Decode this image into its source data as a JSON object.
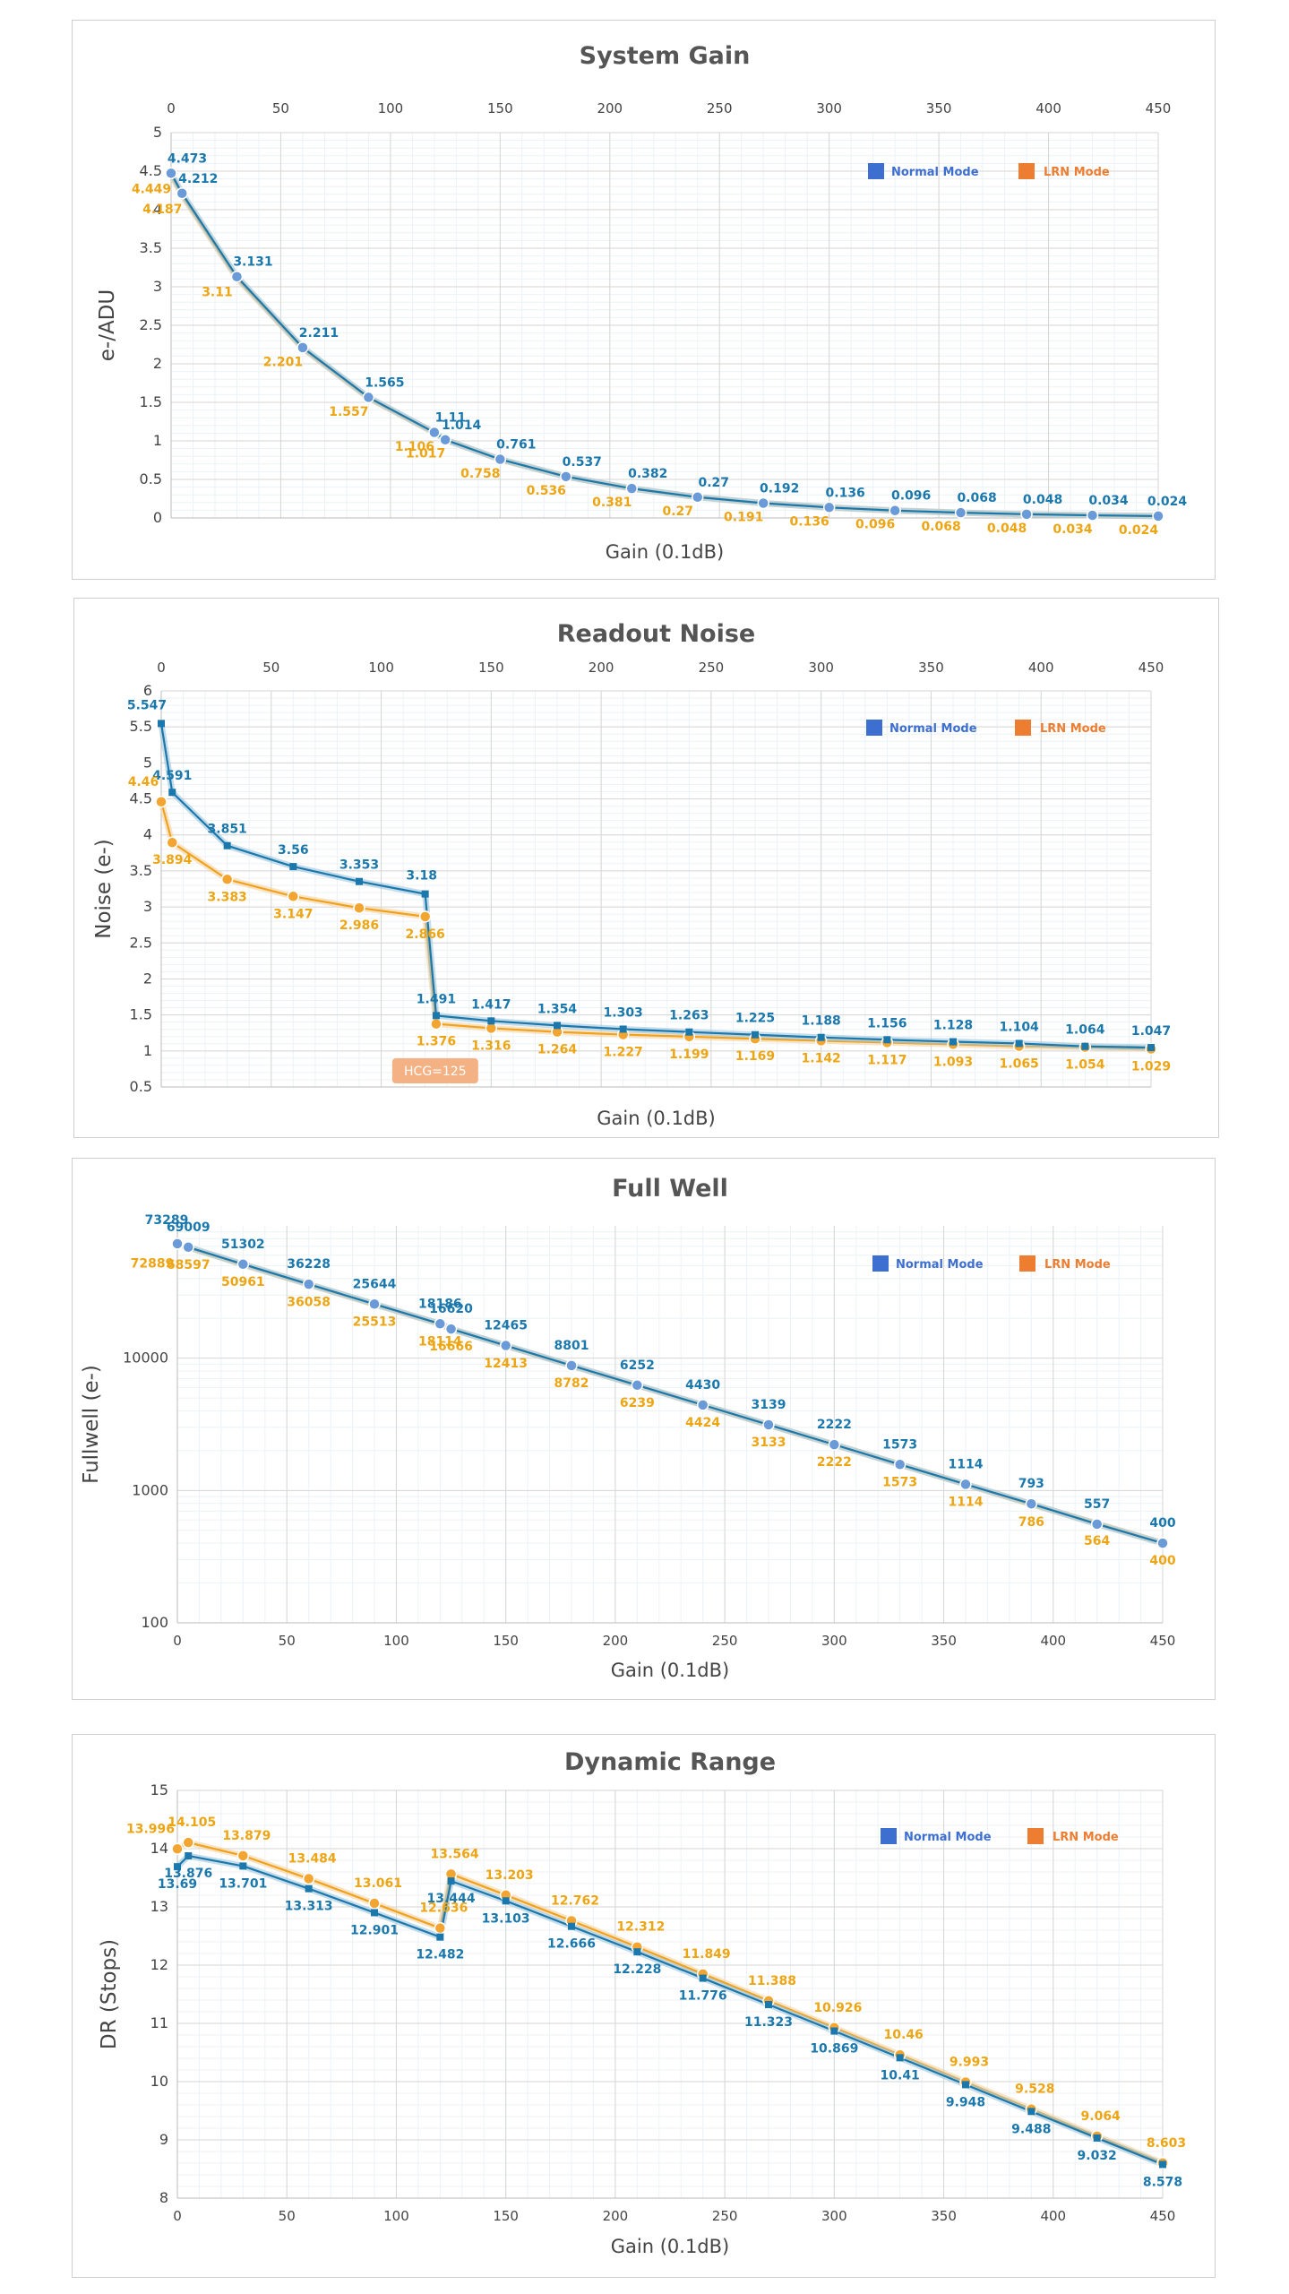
{
  "colors": {
    "normal": "#1b78ac",
    "lrn": "#f0a21c",
    "normal_legend": "#3d6fd0",
    "lrn_legend": "#ed7d31",
    "marker": "#6a9bd8",
    "text_axis": "#555555",
    "hcg_bg": "#f4b183"
  },
  "legend": {
    "normal": "Normal Mode",
    "lrn": "LRN Mode"
  },
  "chart_data": [
    {
      "type": "line",
      "title": "System Gain",
      "xlabel": "Gain (0.1dB)",
      "ylabel": "e-/ADU",
      "x_axis_position": "top",
      "xlim": [
        0,
        450
      ],
      "ylim": [
        0,
        5
      ],
      "x_ticks": [
        "0",
        "50",
        "100",
        "150",
        "200",
        "250",
        "300",
        "350",
        "400",
        "450"
      ],
      "y_ticks": [
        "0",
        "0.5",
        "1",
        "1.5",
        "2",
        "2.5",
        "3",
        "3.5",
        "4",
        "4.5",
        "5"
      ],
      "series": [
        {
          "name": "Normal Mode",
          "x": [
            0,
            5,
            30,
            60,
            90,
            120,
            125,
            150,
            180,
            210,
            240,
            270,
            300,
            330,
            360,
            390,
            420,
            450
          ],
          "values": [
            4.473,
            4.212,
            3.131,
            2.211,
            1.565,
            1.11,
            1.014,
            0.761,
            0.537,
            0.382,
            0.27,
            0.192,
            0.136,
            0.096,
            0.068,
            0.048,
            0.034,
            0.024
          ],
          "labels": [
            "4.473",
            "4.212",
            "3.131",
            "2.211",
            "1.565",
            "1.11",
            "1.014",
            "0.761",
            "0.537",
            "0.382",
            "0.27",
            "0.192",
            "0.136",
            "0.096",
            "0.068",
            "0.048",
            "0.034",
            "0.024"
          ]
        },
        {
          "name": "LRN Mode",
          "x": [
            0,
            5,
            30,
            60,
            90,
            120,
            125,
            150,
            180,
            210,
            240,
            270,
            300,
            330,
            360,
            390,
            420,
            450
          ],
          "values": [
            4.449,
            4.187,
            3.11,
            2.201,
            1.557,
            1.106,
            1.017,
            0.758,
            0.536,
            0.381,
            0.27,
            0.191,
            0.136,
            0.096,
            0.068,
            0.048,
            0.034,
            0.024
          ],
          "labels": [
            "4.449",
            "4.187",
            "3.11",
            "2.201",
            "1.557",
            "1.106",
            "1.017",
            "0.758",
            "0.536",
            "0.381",
            "0.27",
            "0.191",
            "0.136",
            "0.096",
            "0.068",
            "0.048",
            "0.034",
            "0.024"
          ]
        }
      ]
    },
    {
      "type": "line",
      "title": "Readout Noise",
      "xlabel": "Gain (0.1dB)",
      "ylabel": "Noise (e-)",
      "x_axis_position": "top",
      "xlim": [
        0,
        450
      ],
      "ylim": [
        0.5,
        6
      ],
      "x_ticks": [
        "0",
        "50",
        "100",
        "150",
        "200",
        "250",
        "300",
        "350",
        "400",
        "450"
      ],
      "y_ticks": [
        "0.5",
        "1",
        "1.5",
        "2",
        "2.5",
        "3",
        "3.5",
        "4",
        "4.5",
        "5",
        "5.5",
        "6"
      ],
      "annotation": "HCG=125",
      "series": [
        {
          "name": "Normal Mode",
          "x": [
            0,
            5,
            30,
            60,
            90,
            120,
            125,
            150,
            180,
            210,
            240,
            270,
            300,
            330,
            360,
            390,
            420,
            450
          ],
          "values": [
            5.547,
            4.591,
            3.851,
            3.56,
            3.353,
            3.18,
            1.491,
            1.417,
            1.354,
            1.303,
            1.263,
            1.225,
            1.188,
            1.156,
            1.128,
            1.104,
            1.064,
            1.047
          ],
          "labels": [
            "5.547",
            "4.591",
            "3.851",
            "3.56",
            "3.353",
            "3.18",
            "1.491",
            "1.417",
            "1.354",
            "1.303",
            "1.263",
            "1.225",
            "1.188",
            "1.156",
            "1.128",
            "1.104",
            "1.064",
            "1.047"
          ]
        },
        {
          "name": "LRN Mode",
          "x": [
            0,
            5,
            30,
            60,
            90,
            120,
            125,
            150,
            180,
            210,
            240,
            270,
            300,
            330,
            360,
            390,
            420,
            450
          ],
          "values": [
            4.46,
            3.894,
            3.383,
            3.147,
            2.986,
            2.866,
            1.376,
            1.316,
            1.264,
            1.227,
            1.199,
            1.169,
            1.142,
            1.117,
            1.093,
            1.065,
            1.054,
            1.029
          ],
          "labels": [
            "4.46",
            "3.894",
            "3.383",
            "3.147",
            "2.986",
            "2.866",
            "1.376",
            "1.316",
            "1.264",
            "1.227",
            "1.199",
            "1.169",
            "1.142",
            "1.117",
            "1.093",
            "1.065",
            "1.054",
            "1.029"
          ]
        }
      ]
    },
    {
      "type": "line",
      "title": "Full Well",
      "xlabel": "Gain (0.1dB)",
      "ylabel": "Fullwell (e-)",
      "x_axis_position": "bottom",
      "y_scale": "log",
      "xlim": [
        0,
        450
      ],
      "ylim": [
        100,
        100000
      ],
      "x_ticks": [
        "0",
        "50",
        "100",
        "150",
        "200",
        "250",
        "300",
        "350",
        "400",
        "450"
      ],
      "y_ticks": [
        "100",
        "1000",
        "10000"
      ],
      "series": [
        {
          "name": "Normal Mode",
          "x": [
            0,
            5,
            30,
            60,
            90,
            120,
            125,
            150,
            180,
            210,
            240,
            270,
            300,
            330,
            360,
            390,
            420,
            450
          ],
          "values": [
            73289,
            69009,
            51302,
            36228,
            25644,
            18186,
            16620,
            12465,
            8801,
            6252,
            4430,
            3139,
            2222,
            1573,
            1114,
            793,
            557,
            400
          ],
          "labels": [
            "73289",
            "69009",
            "51302",
            "36228",
            "25644",
            "18186",
            "16620",
            "12465",
            "8801",
            "6252",
            "4430",
            "3139",
            "2222",
            "1573",
            "1114",
            "793",
            "557",
            "400"
          ]
        },
        {
          "name": "LRN Mode",
          "x": [
            0,
            5,
            30,
            60,
            90,
            120,
            125,
            150,
            180,
            210,
            240,
            270,
            300,
            330,
            360,
            390,
            420,
            450
          ],
          "values": [
            72889,
            68597,
            50961,
            36058,
            25513,
            18114,
            16666,
            12413,
            8782,
            6239,
            4424,
            3133,
            2222,
            1573,
            1114,
            786,
            564,
            400
          ],
          "labels": [
            "72889",
            "68597",
            "50961",
            "36058",
            "25513",
            "18114",
            "16666",
            "12413",
            "8782",
            "6239",
            "4424",
            "3133",
            "2222",
            "1573",
            "1114",
            "786",
            "564",
            "400"
          ]
        }
      ]
    },
    {
      "type": "line",
      "title": "Dynamic Range",
      "xlabel": "Gain (0.1dB)",
      "ylabel": "DR (Stops)",
      "x_axis_position": "bottom",
      "xlim": [
        0,
        450
      ],
      "ylim": [
        8,
        15
      ],
      "x_ticks": [
        "0",
        "50",
        "100",
        "150",
        "200",
        "250",
        "300",
        "350",
        "400",
        "450"
      ],
      "y_ticks": [
        "8",
        "9",
        "10",
        "11",
        "12",
        "13",
        "14",
        "15"
      ],
      "series": [
        {
          "name": "Normal Mode",
          "x": [
            0,
            5,
            30,
            60,
            90,
            120,
            125,
            150,
            180,
            210,
            240,
            270,
            300,
            330,
            360,
            390,
            420,
            450
          ],
          "values": [
            13.69,
            13.876,
            13.701,
            13.313,
            12.901,
            12.482,
            13.444,
            13.103,
            12.666,
            12.228,
            11.776,
            11.323,
            10.869,
            10.41,
            9.948,
            9.488,
            9.032,
            8.578
          ],
          "labels": [
            "13.69",
            "13.876",
            "13.701",
            "13.313",
            "12.901",
            "12.482",
            "13.444",
            "13.103",
            "12.666",
            "12.228",
            "11.776",
            "11.323",
            "10.869",
            "10.41",
            "9.948",
            "9.488",
            "9.032",
            "8.578"
          ]
        },
        {
          "name": "LRN Mode",
          "x": [
            0,
            5,
            30,
            60,
            90,
            120,
            125,
            150,
            180,
            210,
            240,
            270,
            300,
            330,
            360,
            390,
            420,
            450
          ],
          "values": [
            13.996,
            14.105,
            13.879,
            13.484,
            13.061,
            12.636,
            13.564,
            13.203,
            12.762,
            12.312,
            11.849,
            11.388,
            10.926,
            10.46,
            9.993,
            9.528,
            9.064,
            8.603
          ],
          "labels": [
            "13.996",
            "14.105",
            "13.879",
            "13.484",
            "13.061",
            "12.636",
            "13.564",
            "13.203",
            "12.762",
            "12.312",
            "11.849",
            "11.388",
            "10.926",
            "10.46",
            "9.993",
            "9.528",
            "9.064",
            "8.603"
          ]
        }
      ]
    }
  ]
}
